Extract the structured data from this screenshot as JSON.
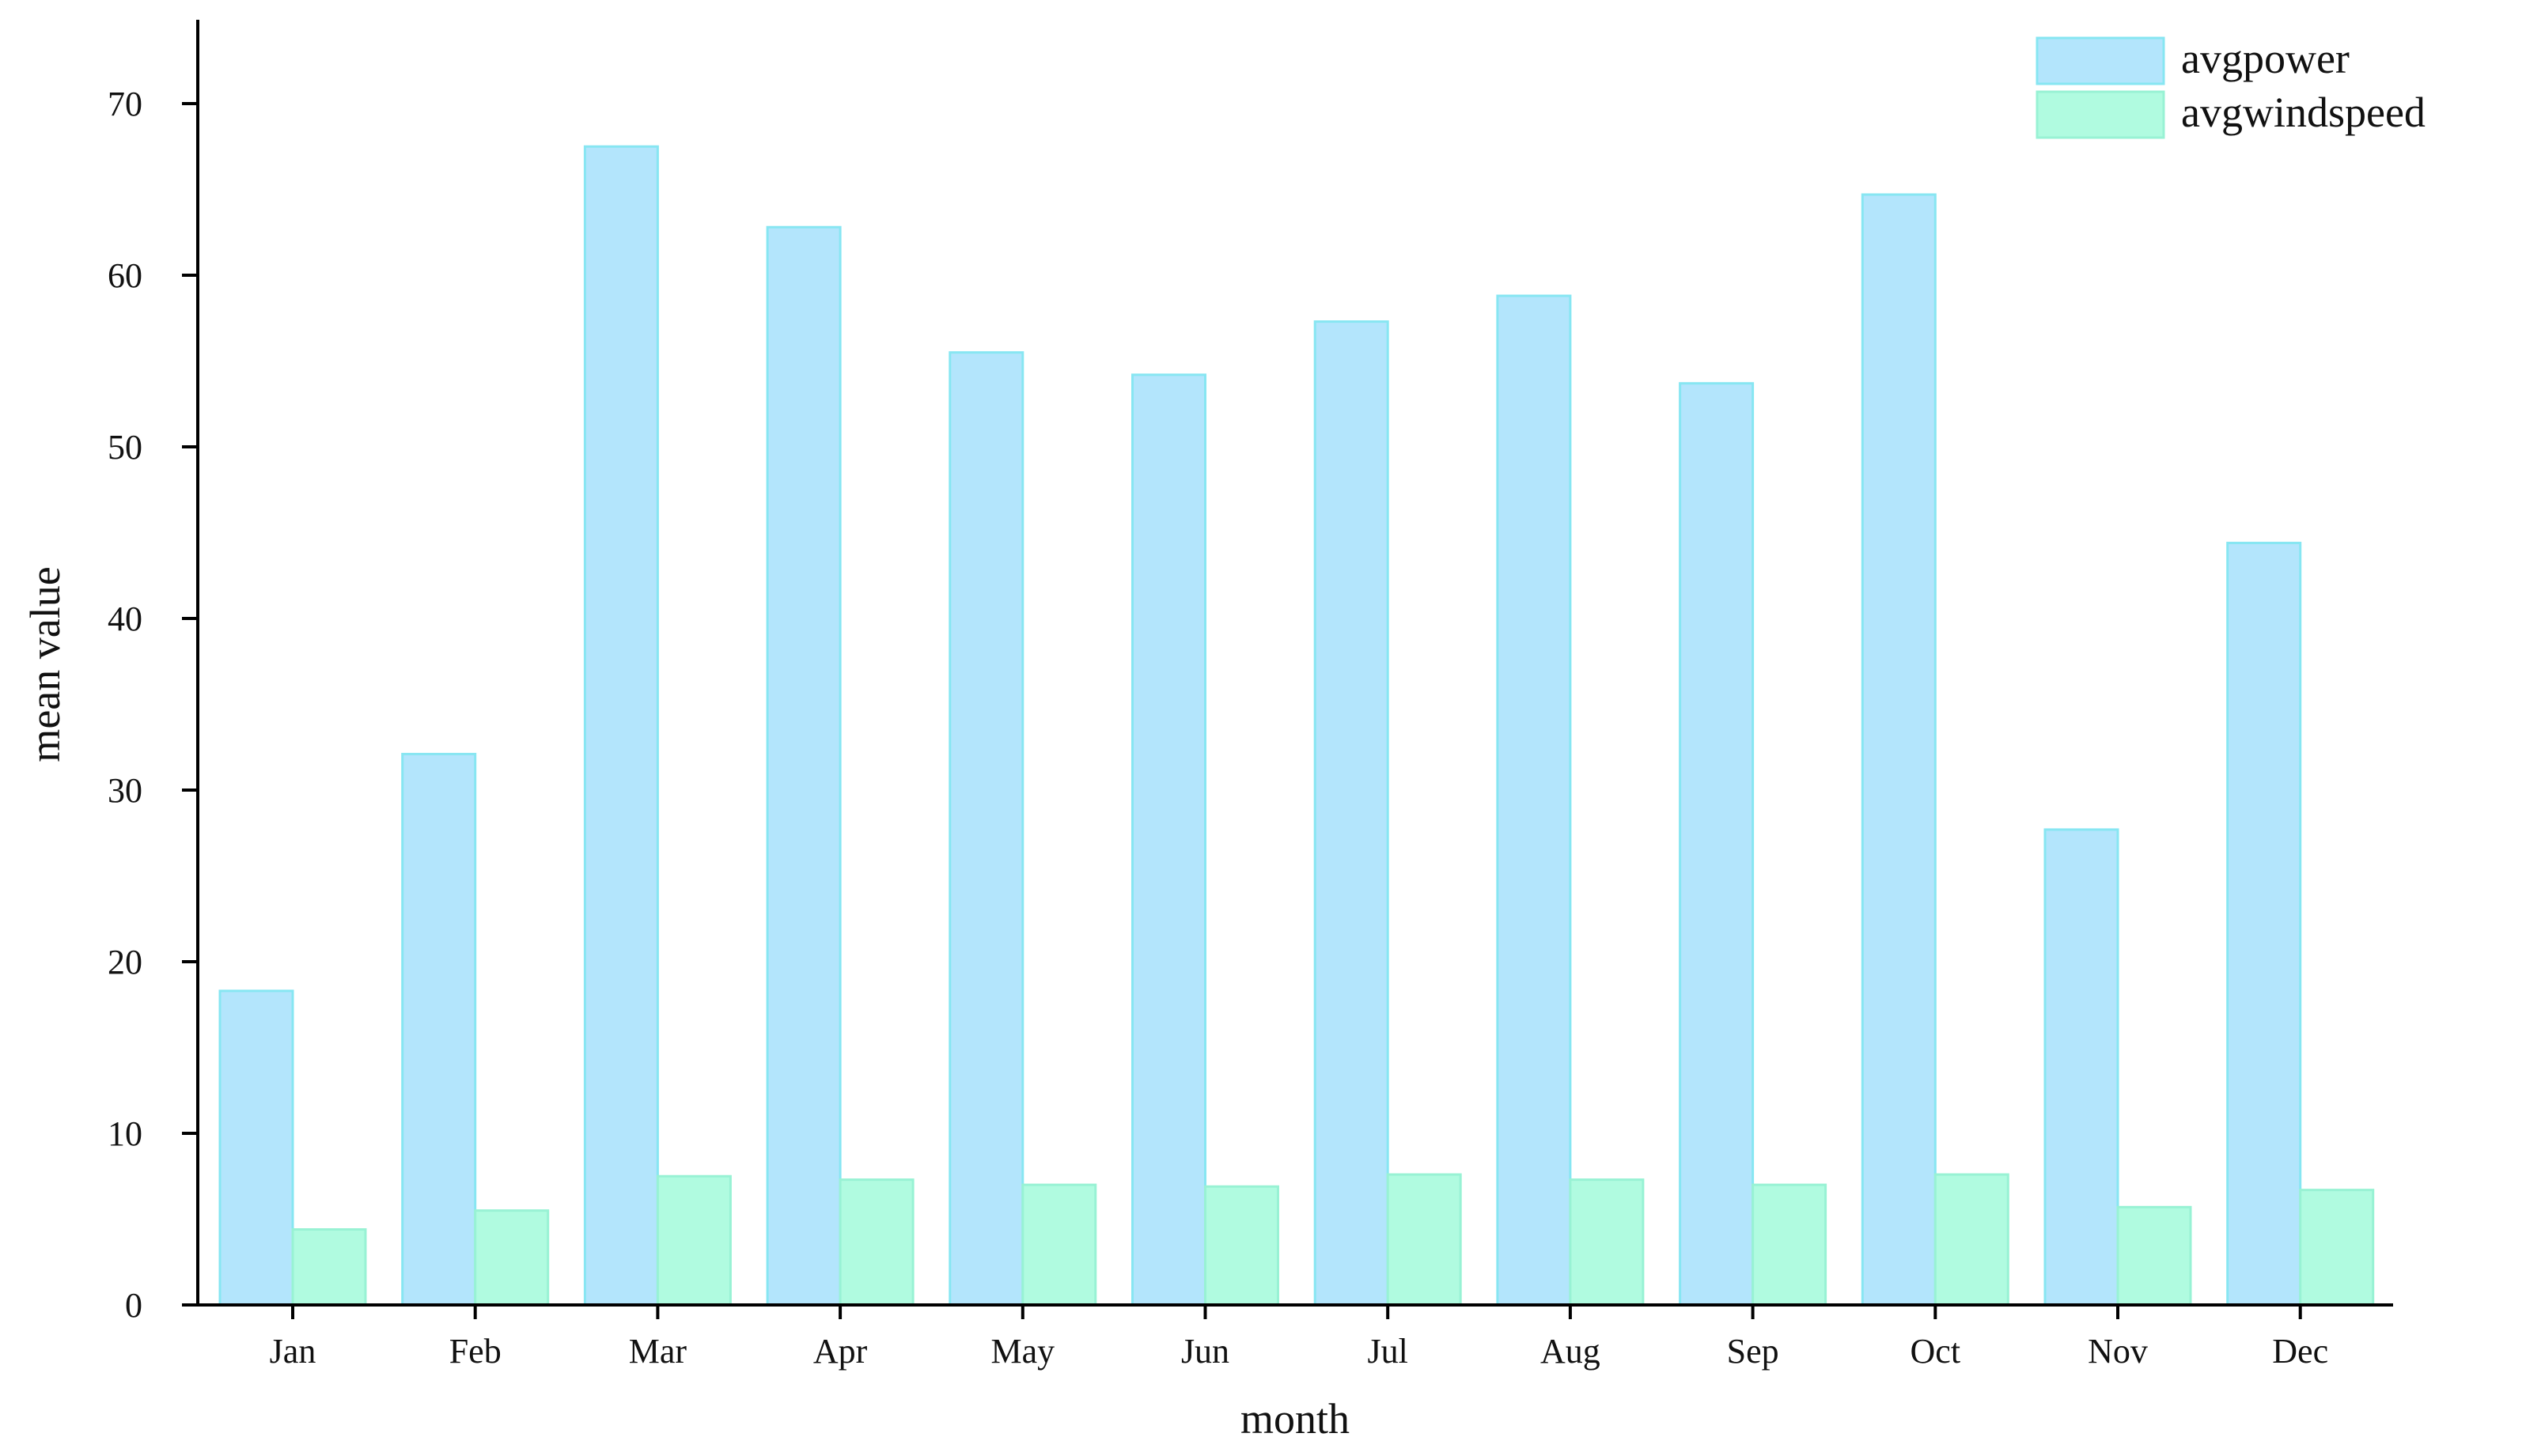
{
  "chart_data": {
    "type": "bar",
    "title": "",
    "xlabel": "month",
    "ylabel": "mean value",
    "categories": [
      "Jan",
      "Feb",
      "Mar",
      "Apr",
      "May",
      "Jun",
      "Jul",
      "Aug",
      "Sep",
      "Oct",
      "Nov",
      "Dec"
    ],
    "series": [
      {
        "name": "avgpower",
        "color": "#b3e5fc",
        "edge_color": "#87e6f2",
        "values": [
          18.3,
          32.1,
          67.5,
          62.8,
          55.5,
          54.2,
          57.3,
          58.8,
          53.7,
          64.7,
          27.7,
          44.4
        ]
      },
      {
        "name": "avgwindspeed",
        "color": "#b0fbe0",
        "edge_color": "#98f2d4",
        "values": [
          4.4,
          5.5,
          7.5,
          7.3,
          7.0,
          6.9,
          7.6,
          7.3,
          7.0,
          7.6,
          5.7,
          6.7
        ]
      }
    ],
    "ylim": [
      0,
      75
    ],
    "yticks": [
      0,
      10,
      20,
      30,
      40,
      50,
      60,
      70
    ],
    "grid": false,
    "legend_position": "top-right"
  }
}
